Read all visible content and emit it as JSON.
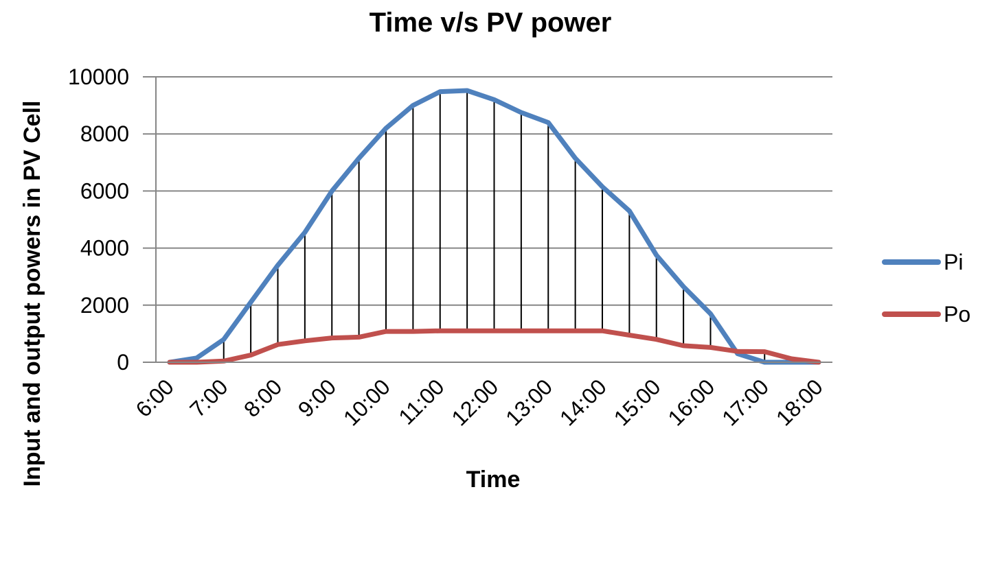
{
  "chart_data": {
    "type": "line",
    "title": "Time v/s PV power",
    "xlabel": "Time",
    "ylabel": "Input and output powers in PV Cell",
    "ylim": [
      0,
      10000
    ],
    "yticks": [
      0,
      2000,
      4000,
      6000,
      8000,
      10000
    ],
    "x_tick_labels": [
      "6:00",
      "7:00",
      "8:00",
      "9:00",
      "10:00",
      "11:00",
      "12:00",
      "13:00",
      "14:00",
      "15:00",
      "16:00",
      "17:00",
      "18:00"
    ],
    "x": [
      "6:00",
      "6:30",
      "7:00",
      "7:30",
      "8:00",
      "8:30",
      "9:00",
      "9:30",
      "10:00",
      "10:30",
      "11:00",
      "11:30",
      "12:00",
      "12:30",
      "13:00",
      "13:30",
      "14:00",
      "14:30",
      "15:00",
      "15:30",
      "16:00",
      "16:30",
      "17:00",
      "17:30",
      "18:00"
    ],
    "series": [
      {
        "name": "Pi",
        "color": "#4F81BD",
        "values": [
          0,
          150,
          800,
          2100,
          3400,
          4550,
          6000,
          7150,
          8200,
          9000,
          9480,
          9520,
          9200,
          8750,
          8400,
          7150,
          6150,
          5300,
          3750,
          2650,
          1700,
          300,
          0,
          0,
          0
        ]
      },
      {
        "name": "Po",
        "color": "#C0504D",
        "values": [
          0,
          0,
          40,
          250,
          620,
          750,
          850,
          880,
          1080,
          1080,
          1100,
          1100,
          1100,
          1100,
          1100,
          1100,
          1100,
          950,
          800,
          580,
          520,
          380,
          370,
          120,
          0
        ]
      }
    ],
    "drop_lines": true,
    "grid": "horizontal",
    "legend": "right"
  }
}
